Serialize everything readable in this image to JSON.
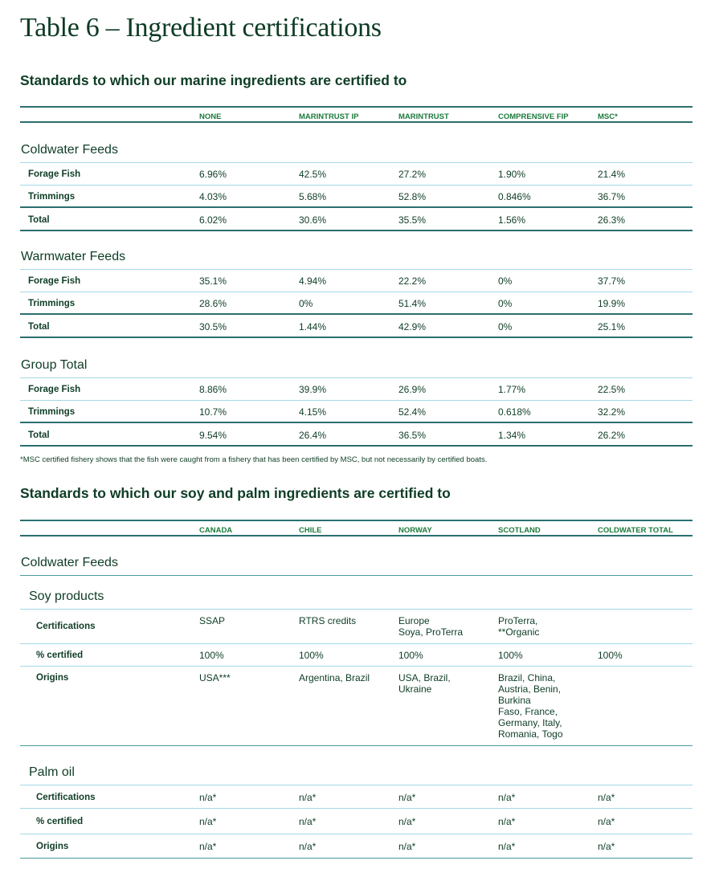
{
  "title": "Table 6 – Ingredient certifications",
  "marine": {
    "heading": "Standards to which our marine ingredients are certified to",
    "columns": [
      "NONE",
      "MARINTRUST IP",
      "MARINTRUST",
      "COMPRENSIVE FIP",
      "MSC*"
    ],
    "sections": [
      {
        "name": "Coldwater Feeds",
        "rows": [
          {
            "label": "Forage Fish",
            "values": [
              "6.96%",
              "42.5%",
              "27.2%",
              "1.90%",
              "21.4%"
            ]
          },
          {
            "label": "Trimmings",
            "values": [
              "4.03%",
              "5.68%",
              "52.8%",
              "0.846%",
              "36.7%"
            ]
          },
          {
            "label": "Total",
            "values": [
              "6.02%",
              "30.6%",
              "35.5%",
              "1.56%",
              "26.3%"
            ]
          }
        ]
      },
      {
        "name": "Warmwater Feeds",
        "rows": [
          {
            "label": "Forage Fish",
            "values": [
              "35.1%",
              "4.94%",
              "22.2%",
              "0%",
              "37.7%"
            ]
          },
          {
            "label": "Trimmings",
            "values": [
              "28.6%",
              "0%",
              "51.4%",
              "0%",
              "19.9%"
            ]
          },
          {
            "label": "Total",
            "values": [
              "30.5%",
              "1.44%",
              "42.9%",
              "0%",
              "25.1%"
            ]
          }
        ]
      },
      {
        "name": "Group Total",
        "rows": [
          {
            "label": "Forage Fish",
            "values": [
              "8.86%",
              "39.9%",
              "26.9%",
              "1.77%",
              "22.5%"
            ]
          },
          {
            "label": "Trimmings",
            "values": [
              "10.7%",
              "4.15%",
              "52.4%",
              "0.618%",
              "32.2%"
            ]
          },
          {
            "label": "Total",
            "values": [
              "9.54%",
              "26.4%",
              "36.5%",
              "1.34%",
              "26.2%"
            ]
          }
        ]
      }
    ],
    "footnote": "*MSC certified fishery shows that the fish were caught from a fishery that has been certified by MSC, but not necessarily by certified boats."
  },
  "soy_palm": {
    "heading": "Standards to which our soy and palm ingredients are certified to",
    "columns": [
      "CANADA",
      "CHILE",
      "NORWAY",
      "SCOTLAND",
      "COLDWATER TOTAL"
    ],
    "section": "Coldwater Feeds",
    "groups": [
      {
        "name": "Soy products",
        "rows": [
          {
            "label": "Certifications",
            "values": [
              "SSAP",
              "RTRS credits",
              "Europe\nSoya, ProTerra",
              "ProTerra,\n**Organic",
              ""
            ]
          },
          {
            "label": "% certified",
            "values": [
              "100%",
              "100%",
              "100%",
              "100%",
              "100%"
            ]
          },
          {
            "label": "Origins",
            "values": [
              "USA***",
              "Argentina, Brazil",
              "USA, Brazil,\nUkraine",
              "Brazil, China,\nAustria, Benin,\nBurkina\nFaso, France,\nGermany, Italy,\nRomania, Togo",
              ""
            ]
          }
        ]
      },
      {
        "name": "Palm oil",
        "rows": [
          {
            "label": "Certifications",
            "values": [
              "n/a*",
              "n/a*",
              "n/a*",
              "n/a*",
              "n/a*"
            ]
          },
          {
            "label": "% certified",
            "values": [
              "n/a*",
              "n/a*",
              "n/a*",
              "n/a*",
              "n/a*"
            ]
          },
          {
            "label": "Origins",
            "values": [
              "n/a*",
              "n/a*",
              "n/a*",
              "n/a*",
              "n/a*"
            ]
          }
        ]
      }
    ]
  }
}
